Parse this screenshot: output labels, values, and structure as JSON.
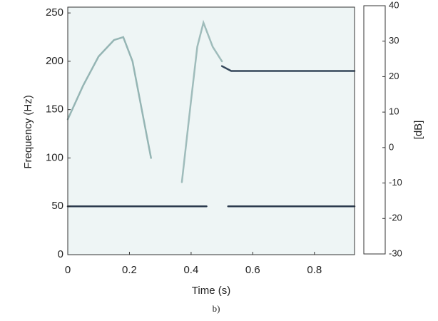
{
  "chart_data": {
    "type": "spectrogram",
    "xlabel": "Time (s)",
    "ylabel": "Frequency (Hz)",
    "caption": "b)",
    "xlim": [
      0,
      0.93
    ],
    "xticks": [
      0,
      0.2,
      0.4,
      0.6,
      0.8
    ],
    "ylim": [
      0,
      256
    ],
    "yticks": [
      0,
      50,
      100,
      150,
      200,
      250
    ],
    "background_color": "#eef5f5",
    "colormap": [
      "#ffffff",
      "#b7d3d1",
      "#6f8a96",
      "#3b3f5e",
      "#08080f"
    ],
    "clim": [
      -30,
      40
    ],
    "cticks": [
      -30,
      -20,
      -10,
      0,
      10,
      20,
      30,
      40
    ],
    "clabel": "[dB]",
    "series": [
      {
        "color": "#2b3a4e",
        "x": [
          0,
          0.45,
          0.48,
          0.52,
          0.93
        ],
        "values": [
          50,
          50,
          null,
          50,
          50
        ]
      },
      {
        "color": "#34465a",
        "x": [
          0.5,
          0.53,
          0.93
        ],
        "values": [
          195,
          190,
          190
        ]
      },
      {
        "color": "#95b5b4",
        "x": [
          0,
          0.05,
          0.1,
          0.15,
          0.18,
          0.21,
          0.24,
          0.27
        ],
        "values": [
          140,
          175,
          205,
          222,
          225,
          200,
          150,
          100
        ]
      },
      {
        "color": "#9fbcbb",
        "x": [
          0.37,
          0.4,
          0.42,
          0.44,
          0.47,
          0.5
        ],
        "values": [
          75,
          160,
          215,
          240,
          215,
          200
        ]
      }
    ]
  }
}
